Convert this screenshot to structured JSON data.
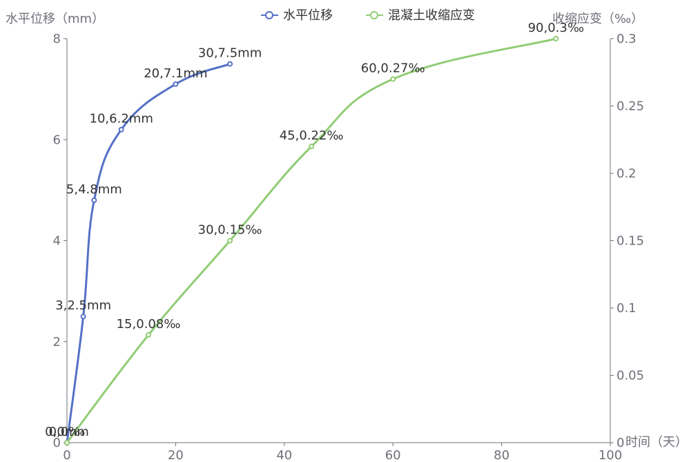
{
  "chart_data": {
    "type": "line",
    "xlabel": "时间（天）",
    "ylabel_left": "水平位移（mm）",
    "ylabel_right": "收缩应变（‰）",
    "xlim": [
      0,
      100
    ],
    "xticks": [
      0,
      20,
      40,
      60,
      80,
      100
    ],
    "ylim_left": [
      0,
      8
    ],
    "yticks_left": [
      0,
      2,
      4,
      6,
      8
    ],
    "ylim_right": [
      0,
      0.3
    ],
    "yticks_right": [
      0,
      0.05,
      0.1,
      0.15,
      0.2,
      0.25,
      0.3
    ],
    "ytick_labels_right": [
      "0",
      "0.05",
      "0.1",
      "0.15",
      "0.2",
      "0.25",
      "0.3"
    ],
    "grid": false,
    "legend_position": "top",
    "series": [
      {
        "name": "水平位移",
        "axis": "left",
        "color": "#5470C6",
        "x": [
          0,
          3,
          5,
          10,
          20,
          30
        ],
        "y": [
          0,
          2.5,
          4.8,
          6.2,
          7.1,
          7.5
        ],
        "labels": [
          "0,0mm",
          "3,2.5mm",
          "5,4.8mm",
          "10,6.2mm",
          "20,7.1mm",
          "30,7.5mm"
        ]
      },
      {
        "name": "混凝土收缩应变",
        "axis": "right",
        "color": "#91CC75",
        "x": [
          0,
          15,
          30,
          45,
          60,
          90
        ],
        "y": [
          0,
          0.08,
          0.15,
          0.22,
          0.27,
          0.3
        ],
        "labels": [
          "0,0‰",
          "15,0.08‰",
          "30,0.15‰",
          "45,0.22‰",
          "60,0.27‰",
          "90,0.3‰"
        ]
      }
    ]
  }
}
